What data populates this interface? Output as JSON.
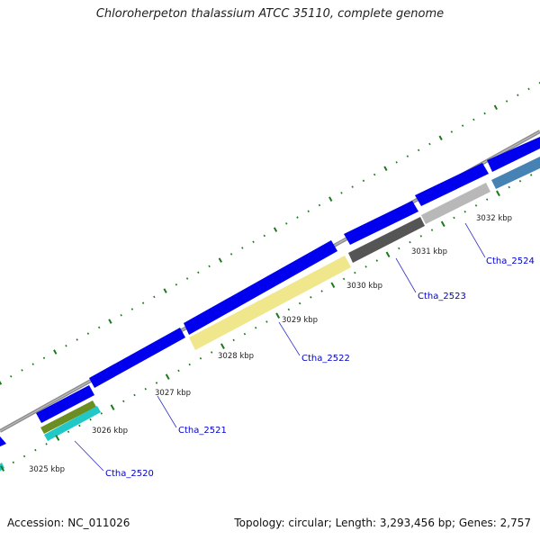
{
  "title": "Chloroherpeton thalassium ATCC 35110, complete genome",
  "accession_label": "Accession: NC_011026",
  "summary_label": "Topology: circular; Length: 3,293,456 bp; Genes: 2,757",
  "colors": {
    "backbone": "#8c8c8c",
    "cds_arrow": "#0000ee",
    "tick": "#1a7a1a",
    "gene_label": "#0000cc",
    "leader_line": "#3333cc",
    "scale_label": "#222222"
  },
  "scale_labels": [
    "3025 kbp",
    "3026 kbp",
    "3027 kbp",
    "3028 kbp",
    "3029 kbp",
    "3030 kbp",
    "3031 kbp",
    "3032 kbp"
  ],
  "gene_labels": [
    "Ctha_2520",
    "Ctha_2521",
    "Ctha_2522",
    "Ctha_2523",
    "Ctha_2524"
  ],
  "feature_colors": [
    "#6b8e23",
    "#20c8c8",
    "#f0e68c",
    "#555555",
    "#b8b8b8",
    "#4682b4"
  ]
}
